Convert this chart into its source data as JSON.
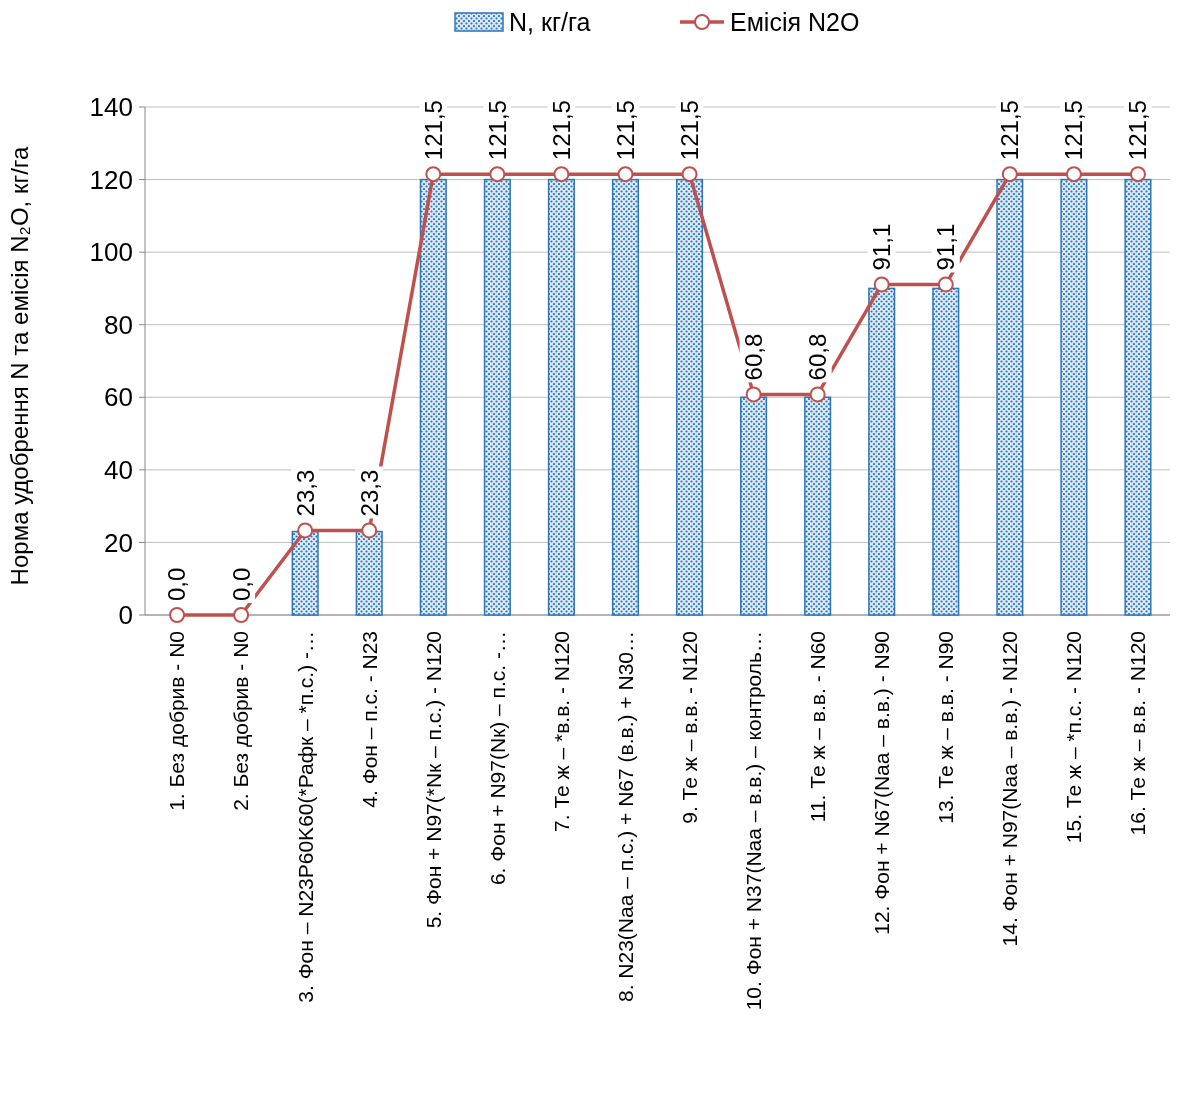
{
  "chart_data": {
    "type": "bar",
    "ylabel": "Норма удобрення N та емісія N₂O, кг/га",
    "categories": [
      "1. Без добрив - N0",
      "2. Без добрив - N0",
      "3. Фон – N23P60K60(*Рафк – *п.с.) -…",
      "4. Фон – п.с. - N23",
      "5. Фон + N97(*Nк – п.с.) - N120",
      "6. Фон + N97(Nк) – п.с. -…",
      "7. Те ж – *в.в. - N120",
      "8. N23(Naa – п.с.) + N67 (в.в.) + N30…",
      "9. Те ж – в.в. - N120",
      "10. Фон + N37(Naa – в.в.) – контроль…",
      "11. Те ж – в.в. - N60",
      "12. Фон + N67(Naa – в.в.) - N90",
      "13. Те ж – в.в. - N90",
      "14. Фон + N97(Naa – в.в.) - N120",
      "15. Те ж – *п.с. - N120",
      "16. Те ж – в.в. - N120"
    ],
    "series": [
      {
        "name": "N, кг/га",
        "color": "#2e75b6",
        "values": [
          0,
          0,
          23,
          23,
          120,
          120,
          120,
          120,
          120,
          60,
          60,
          90,
          90,
          120,
          120,
          120
        ]
      },
      {
        "name": "Емісія N2O",
        "type": "line",
        "color": "#c0504d",
        "marker": "circle",
        "values": [
          0,
          0,
          23.3,
          23.3,
          121.5,
          121.5,
          121.5,
          121.5,
          121.5,
          60.8,
          60.8,
          91.1,
          91.1,
          121.5,
          121.5,
          121.5
        ],
        "value_labels": [
          "0,0",
          "0,0",
          "23,3",
          "23,3",
          "121,5",
          "121,5",
          "121,5",
          "121,5",
          "121,5",
          "60,8",
          "60,8",
          "91,1",
          "91,1",
          "121,5",
          "121,5",
          "121,5"
        ]
      }
    ],
    "ylim": [
      0,
      140
    ],
    "yticks": [
      0,
      20,
      40,
      60,
      80,
      100,
      120,
      140
    ],
    "grid": "y",
    "legend": "top"
  }
}
